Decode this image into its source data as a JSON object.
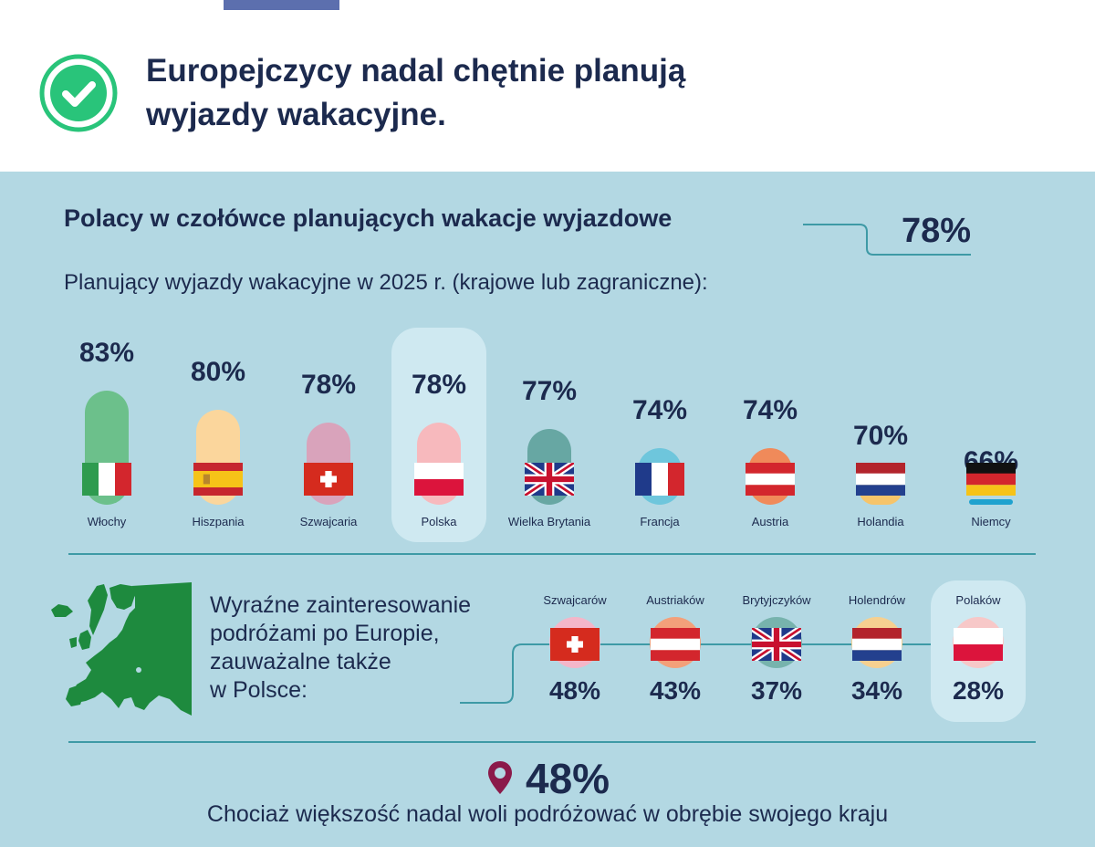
{
  "header": {
    "title_line1": "Europejczycy nadal chętnie planują",
    "title_line2": "wyjazdy wakacyjne."
  },
  "subtitle": "Polacy w czołówce planujących wakacje wyjazdowe",
  "highlight_value": "78%",
  "intro": "Planujący wyjazdy wakacyjne w 2025 r. (krajowe lub zagraniczne):",
  "chart_data": [
    {
      "type": "bar",
      "categories": [
        "Włochy",
        "Hiszpania",
        "Szwajcaria",
        "Polska",
        "Wielka Brytania",
        "Francja",
        "Austria",
        "Holandia",
        "Niemcy"
      ],
      "values": [
        83,
        80,
        78,
        78,
        77,
        74,
        74,
        70,
        66
      ],
      "labels": [
        "83%",
        "80%",
        "78%",
        "78%",
        "77%",
        "74%",
        "74%",
        "70%",
        "66%"
      ],
      "colors": [
        "#6cc08b",
        "#fbd69c",
        "#d9a3bb",
        "#f7b9bd",
        "#67a7a3",
        "#6ec6dc",
        "#f08a5a",
        "#f6c46a",
        "#1ea2cf"
      ],
      "highlighted": "Polska",
      "units": "%"
    },
    {
      "type": "bar",
      "categories": [
        "Szwajcarów",
        "Austriaków",
        "Brytyjczyków",
        "Holendrów",
        "Polaków"
      ],
      "values": [
        48,
        43,
        37,
        34,
        28
      ],
      "labels": [
        "48%",
        "43%",
        "37%",
        "34%",
        "28%"
      ],
      "colors": [
        "#f4b6c9",
        "#f3a07a",
        "#77b3ad",
        "#f6d090",
        "#f7c8c8"
      ],
      "highlighted": "Polaków",
      "units": "%"
    }
  ],
  "interest": {
    "line1": "Wyraźne zainteresowanie",
    "line2": "podróżami po Europie,",
    "line3": "zauważalne także",
    "line4": "w Polsce:"
  },
  "bottom": {
    "value": "48%",
    "text": "Chociaż większość nadal woli podróżować w obrębie swojego kraju"
  },
  "icons": {
    "check": "check-circle-icon",
    "map": "europe-map-icon",
    "pin": "location-pin-icon"
  },
  "colors": {
    "navy": "#1c2a4e",
    "panel": "#b3d8e3",
    "highlight": "#cfe9f1",
    "check": "#29c47a",
    "pin": "#8b1a4a"
  }
}
